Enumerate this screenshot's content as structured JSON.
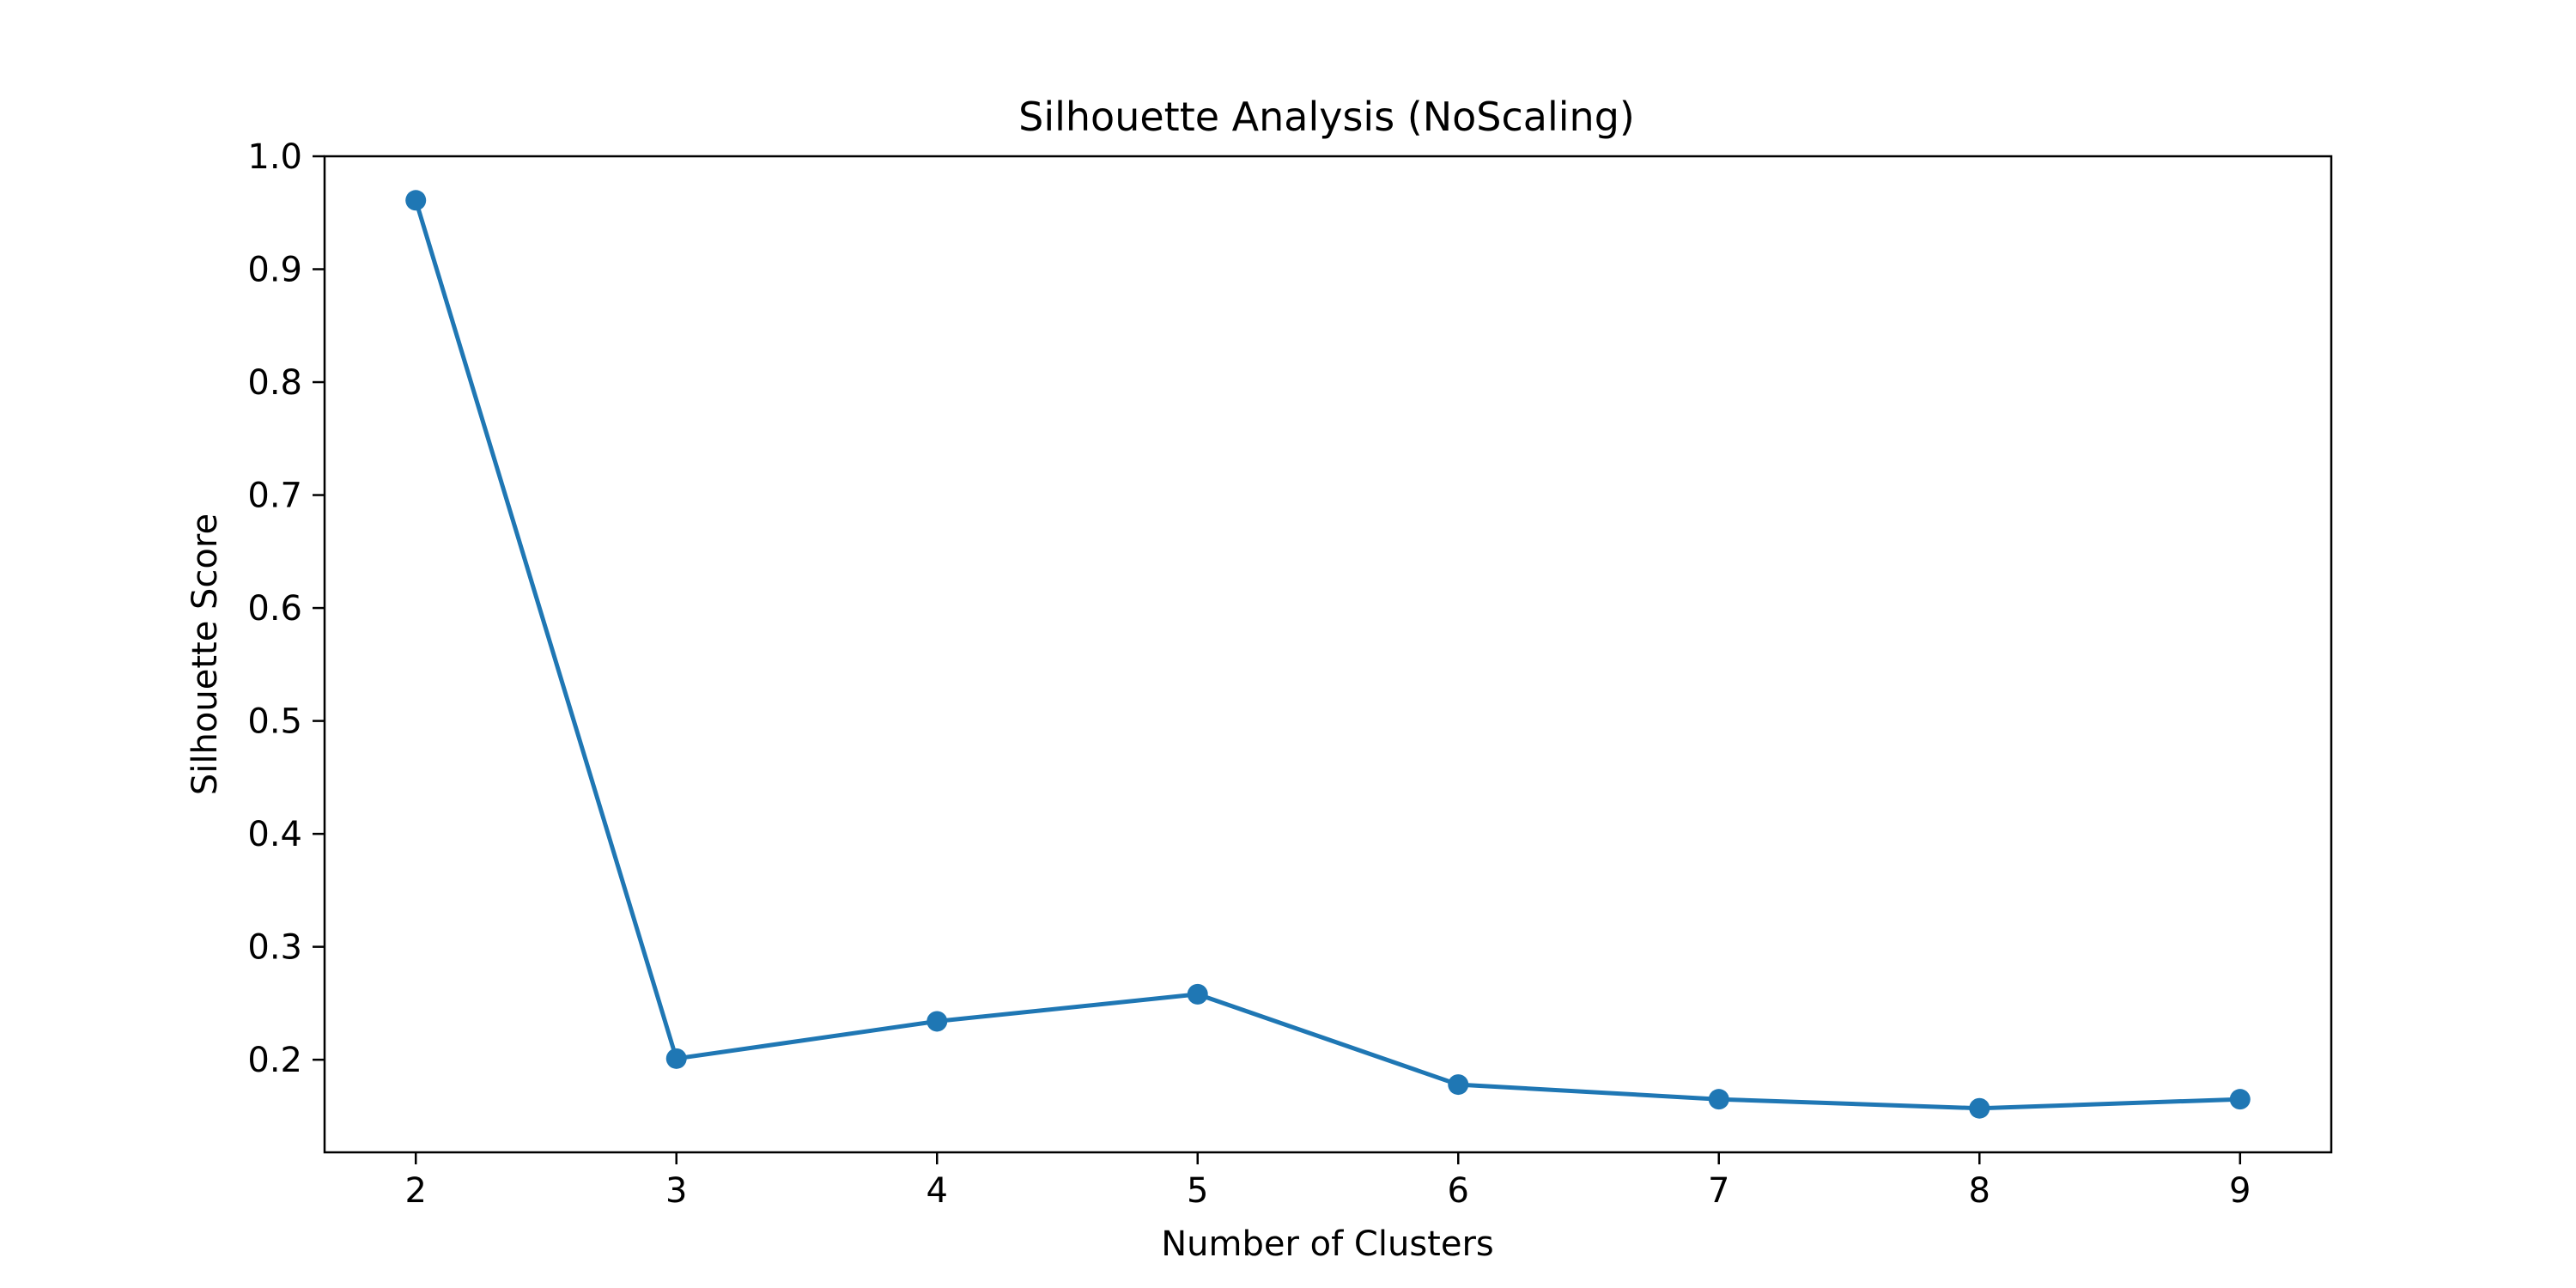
{
  "chart_data": {
    "type": "line",
    "title": "Silhouette Analysis (NoScaling)",
    "xlabel": "Number of Clusters",
    "ylabel": "Silhouette Score",
    "x": [
      2,
      3,
      4,
      5,
      6,
      7,
      8,
      9
    ],
    "series": [
      {
        "name": "Silhouette Score",
        "values": [
          0.961,
          0.201,
          0.234,
          0.258,
          0.178,
          0.165,
          0.157,
          0.165
        ],
        "color": "#1f77b4",
        "marker": "circle"
      }
    ],
    "xlim": [
      1.65,
      9.35
    ],
    "ylim": [
      0.118,
      1.0
    ],
    "xticks": [
      2,
      3,
      4,
      5,
      6,
      7,
      8,
      9
    ],
    "yticks": [
      0.2,
      0.3,
      0.4,
      0.5,
      0.6,
      0.7,
      0.8,
      0.9,
      1.0
    ],
    "ytick_labels": [
      "0.2",
      "0.3",
      "0.4",
      "0.5",
      "0.6",
      "0.7",
      "0.8",
      "0.9",
      "1.0"
    ],
    "grid": false,
    "legend": false
  }
}
